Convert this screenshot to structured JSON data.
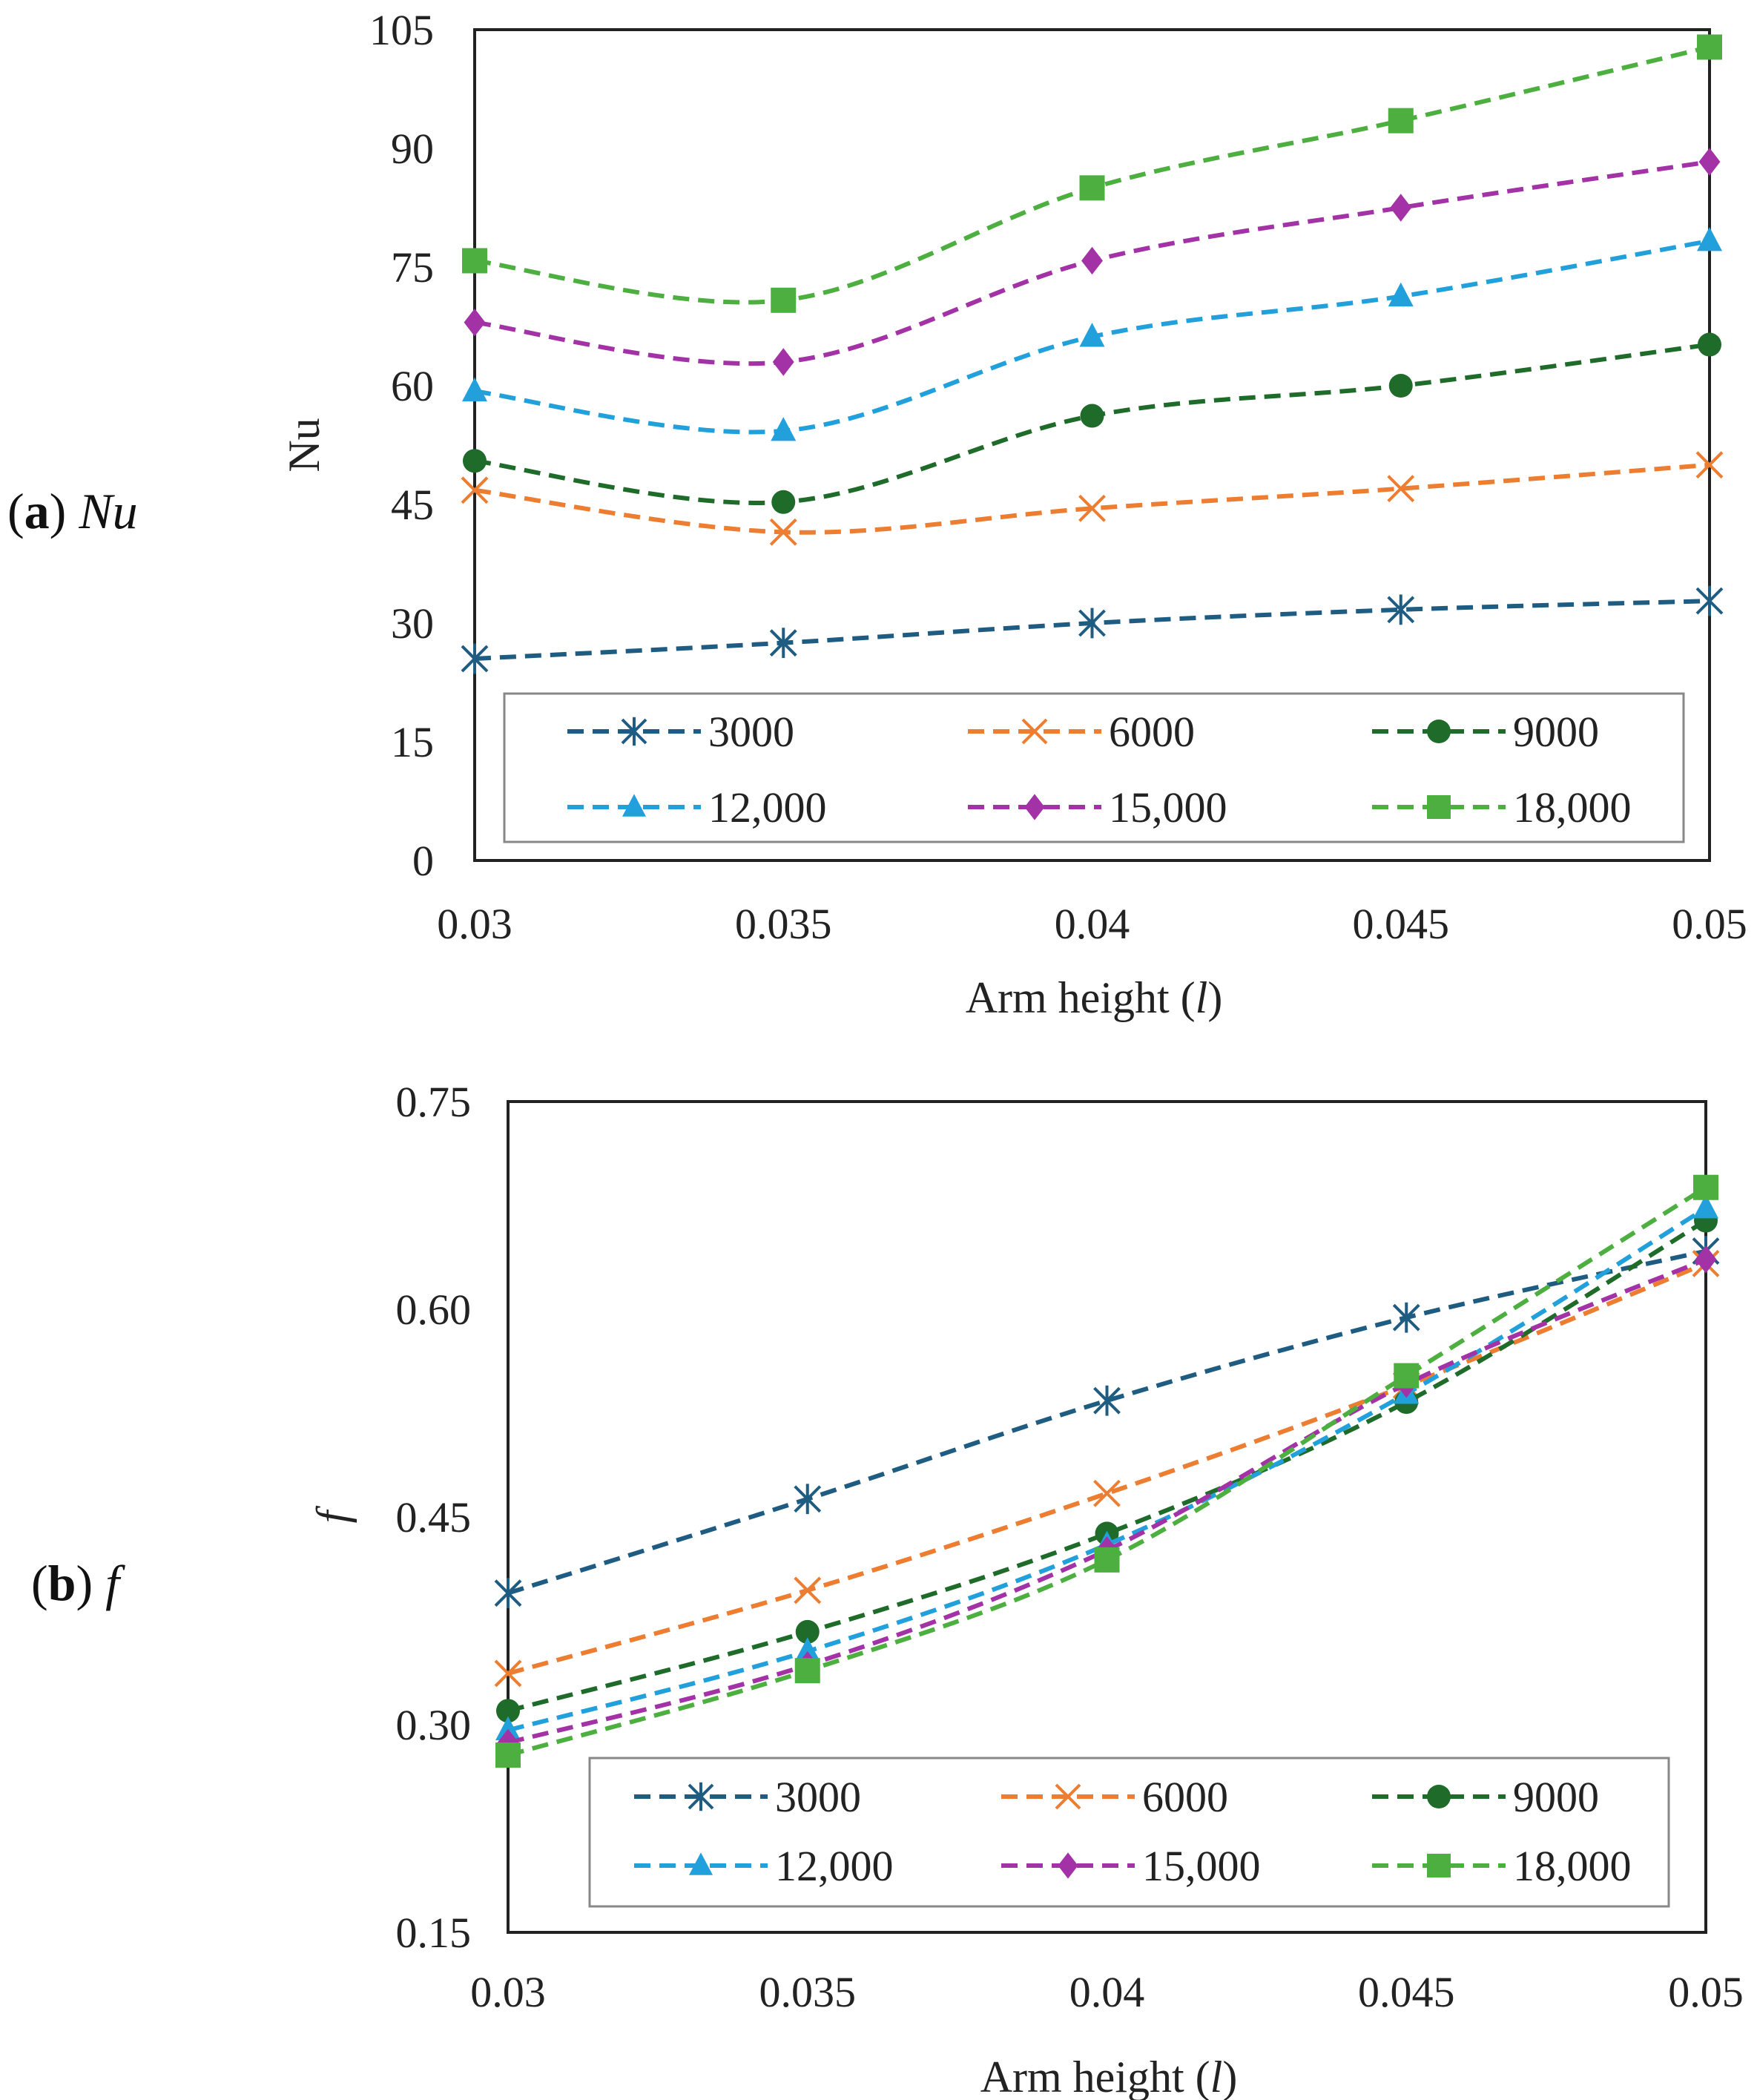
{
  "panels": {
    "a": {
      "letter": "a",
      "symbol": "Nu"
    },
    "b": {
      "letter": "b",
      "symbol": "f"
    }
  },
  "chart_data": [
    {
      "id": "a",
      "type": "line",
      "title": "",
      "xlabel": "Arm height (l)",
      "ylabel": "Nu",
      "x": [
        0.03,
        0.035,
        0.04,
        0.045,
        0.05
      ],
      "x_tick_labels": [
        "0.03",
        "0.035",
        "0.04",
        "0.045",
        "0.05"
      ],
      "ylim": [
        0,
        105
      ],
      "y_ticks": [
        0,
        15,
        30,
        45,
        60,
        75,
        90,
        105
      ],
      "y_tick_labels": [
        "0",
        "15",
        "30",
        "45",
        "60",
        "75",
        "90",
        "105"
      ],
      "legend_position": "bottom",
      "series": [
        {
          "name": "3000",
          "color": "#1F5C82",
          "marker": "asterisk",
          "values": [
            25.5,
            27.5,
            30.0,
            31.7,
            32.8
          ]
        },
        {
          "name": "6000",
          "color": "#ED7D31",
          "marker": "x",
          "values": [
            46.8,
            41.5,
            44.5,
            47.0,
            50.0
          ]
        },
        {
          "name": "9000",
          "color": "#1E6B2A",
          "marker": "circle",
          "values": [
            50.5,
            45.3,
            56.2,
            60.0,
            65.2
          ]
        },
        {
          "name": "12,000",
          "color": "#21A0DB",
          "marker": "triangle",
          "values": [
            59.3,
            54.3,
            66.2,
            71.3,
            78.3
          ]
        },
        {
          "name": "15,000",
          "color": "#A232A6",
          "marker": "diamond",
          "values": [
            68.0,
            63.0,
            75.8,
            82.5,
            88.3
          ]
        },
        {
          "name": "18,000",
          "color": "#4DAF40",
          "marker": "square",
          "values": [
            75.8,
            70.8,
            85.0,
            93.5,
            102.8
          ]
        }
      ]
    },
    {
      "id": "b",
      "type": "line",
      "title": "",
      "xlabel": "Arm height (l)",
      "ylabel": "f",
      "x": [
        0.03,
        0.035,
        0.04,
        0.045,
        0.05
      ],
      "x_tick_labels": [
        "0.03",
        "0.035",
        "0.04",
        "0.045",
        "0.05"
      ],
      "ylim": [
        0.15,
        0.75
      ],
      "y_ticks": [
        0.15,
        0.3,
        0.45,
        0.6,
        0.75
      ],
      "y_tick_labels": [
        "0.15",
        "0.30",
        "0.45",
        "0.60",
        "0.75"
      ],
      "legend_position": "bottom",
      "series": [
        {
          "name": "3000",
          "color": "#1F5C82",
          "marker": "asterisk",
          "values": [
            0.395,
            0.463,
            0.534,
            0.594,
            0.642
          ]
        },
        {
          "name": "6000",
          "color": "#ED7D31",
          "marker": "x",
          "values": [
            0.337,
            0.397,
            0.467,
            0.545,
            0.633
          ]
        },
        {
          "name": "9000",
          "color": "#1E6B2A",
          "marker": "circle",
          "values": [
            0.31,
            0.367,
            0.438,
            0.533,
            0.664
          ]
        },
        {
          "name": "12,000",
          "color": "#21A0DB",
          "marker": "triangle",
          "values": [
            0.296,
            0.353,
            0.43,
            0.539,
            0.673
          ]
        },
        {
          "name": "15,000",
          "color": "#A232A6",
          "marker": "diamond",
          "values": [
            0.287,
            0.343,
            0.426,
            0.546,
            0.636
          ]
        },
        {
          "name": "18,000",
          "color": "#4DAF40",
          "marker": "square",
          "values": [
            0.278,
            0.339,
            0.419,
            0.552,
            0.688
          ]
        }
      ]
    }
  ]
}
